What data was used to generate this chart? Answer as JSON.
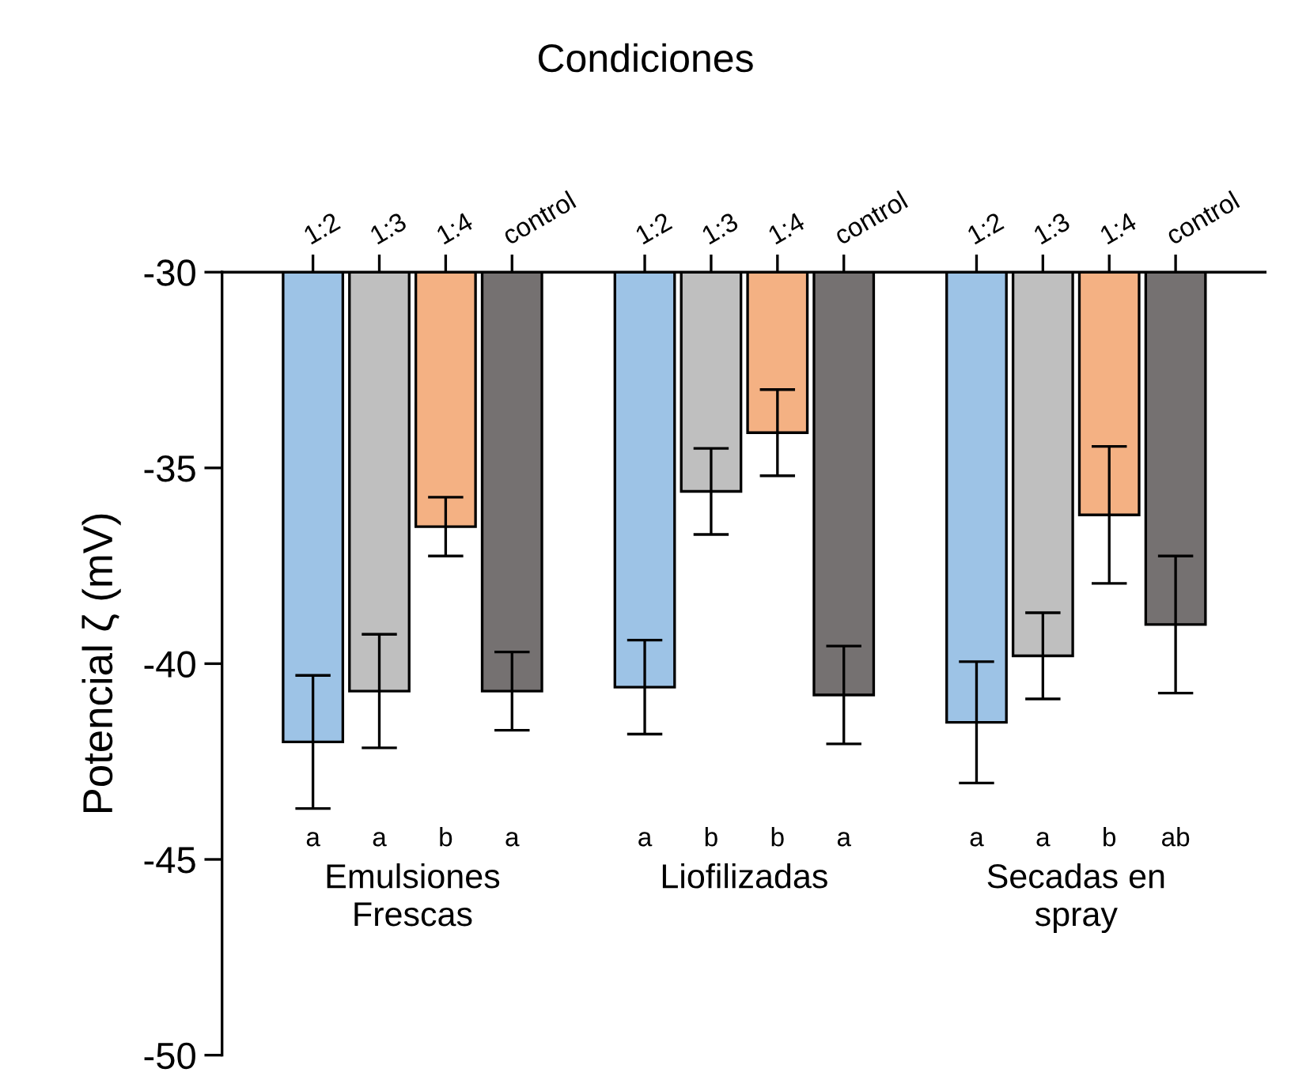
{
  "chart_data": {
    "type": "bar",
    "title": "Condiciones",
    "ylabel": "Potencial ζ (mV)",
    "categories": [
      "1:2",
      "1:3",
      "1:4",
      "control",
      null,
      "1:2",
      "1:3",
      "1:4",
      "control",
      null,
      "1:2",
      "1:3",
      "1:4",
      "control"
    ],
    "values": [
      -42.0,
      -40.7,
      -36.5,
      -40.7,
      null,
      -40.6,
      -35.6,
      -34.1,
      -40.8,
      null,
      -41.5,
      -39.8,
      -36.2,
      -39.0
    ],
    "errors": [
      1.7,
      1.45,
      0.75,
      1.0,
      null,
      1.2,
      1.1,
      1.1,
      1.25,
      null,
      1.55,
      1.1,
      1.75,
      1.75
    ],
    "colors": [
      "#9dc3e6",
      "#bfbfbf",
      "#f4b183",
      "#757171",
      null,
      "#9dc3e6",
      "#bfbfbf",
      "#f4b183",
      "#757171",
      null,
      "#9dc3e6",
      "#bfbfbf",
      "#f4b183",
      "#757171"
    ],
    "annotations": [
      "a",
      "a",
      "b",
      "a",
      "a",
      "b",
      "b",
      "a",
      "a",
      "a",
      "b",
      "ab",
      "Emulsiones\nFrescas",
      "Liofilizadas",
      "Secadas en\nspray"
    ],
    "ylim": [
      -50,
      -30
    ],
    "yticks": [
      -30,
      -35,
      -40,
      -45,
      -50
    ],
    "grid": false
  }
}
